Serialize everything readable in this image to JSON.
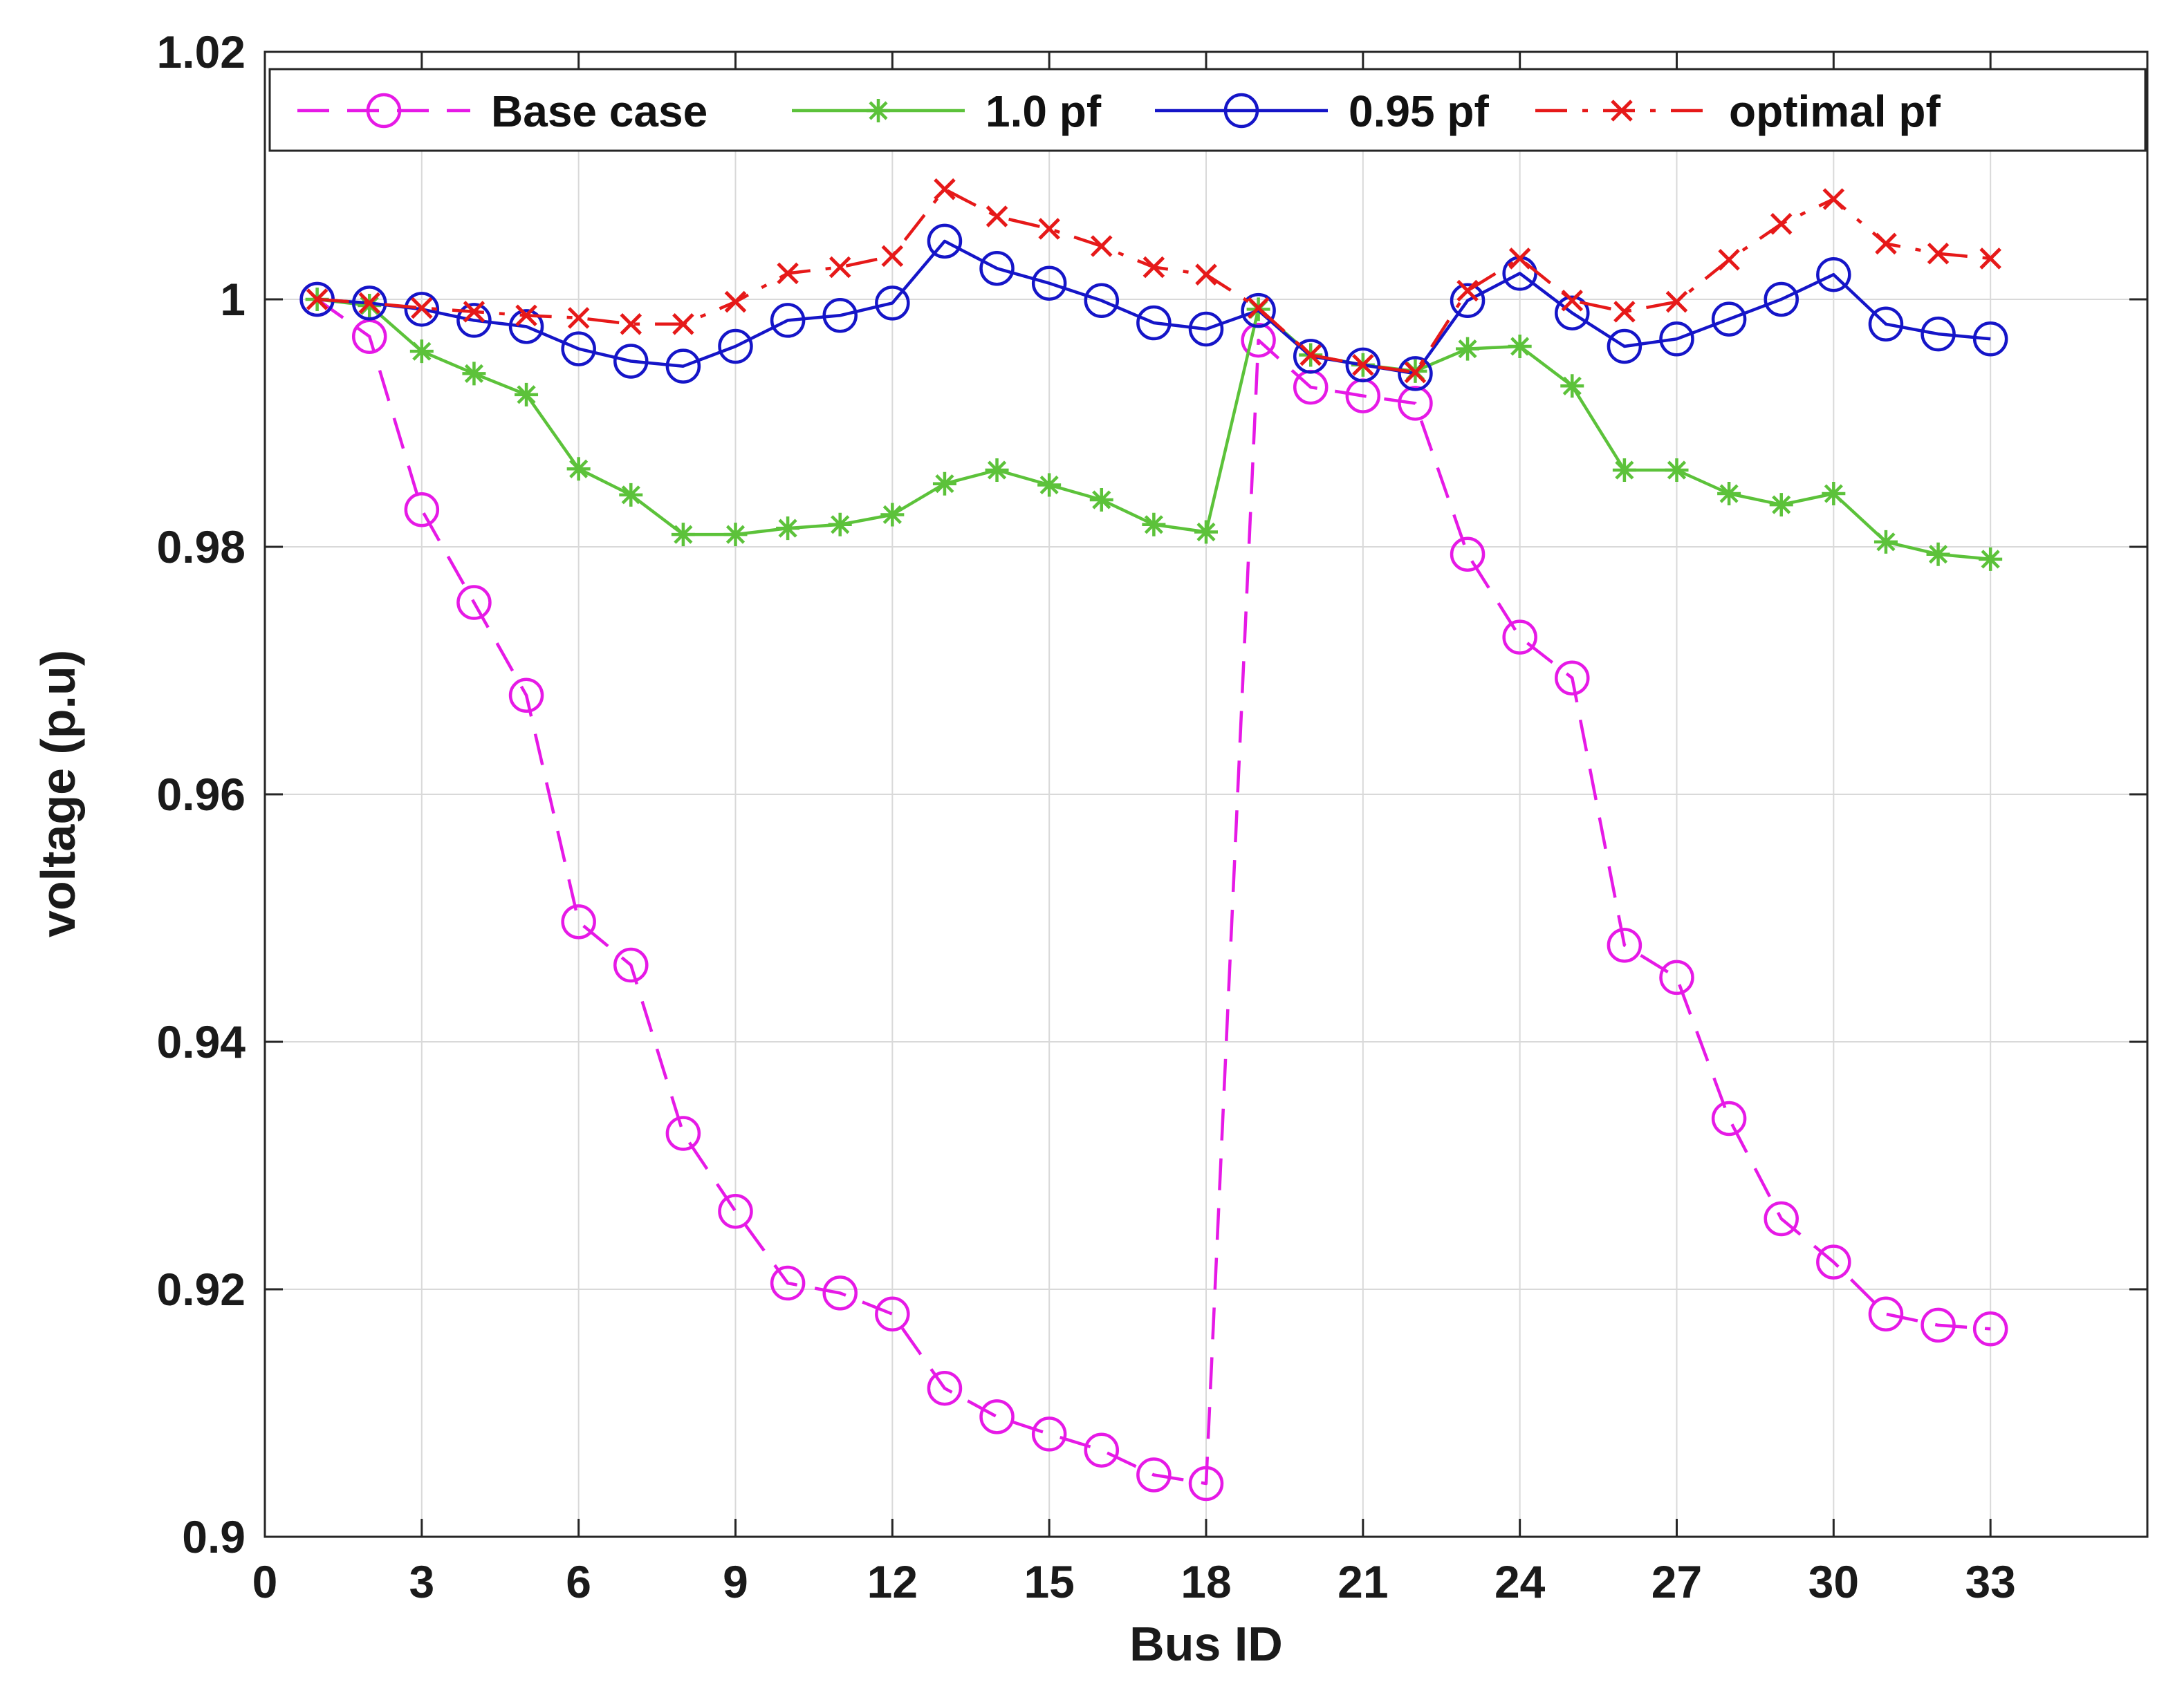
{
  "chart_data": {
    "type": "line",
    "title": "",
    "xlabel": "Bus ID",
    "ylabel": "voltage (p.u)",
    "xlim": [
      0,
      36
    ],
    "ylim": [
      0.9,
      1.02
    ],
    "xticks": [
      0,
      3,
      6,
      9,
      12,
      15,
      18,
      21,
      24,
      27,
      30,
      33
    ],
    "xtick_labels": [
      "0",
      "3",
      "6",
      "9",
      "12",
      "15",
      "18",
      "21",
      "24",
      "27",
      "30",
      "33"
    ],
    "yticks": [
      0.9,
      0.92,
      0.94,
      0.96,
      0.98,
      1.0,
      1.02
    ],
    "ytick_labels": [
      "0.9",
      "0.92",
      "0.94",
      "0.96",
      "0.98",
      "1",
      "1.02"
    ],
    "grid": true,
    "legend_position": "top",
    "x": [
      1,
      2,
      3,
      4,
      5,
      6,
      7,
      8,
      9,
      10,
      11,
      12,
      13,
      14,
      15,
      16,
      17,
      18,
      19,
      20,
      21,
      22,
      23,
      24,
      25,
      26,
      27,
      28,
      29,
      30,
      31,
      32,
      33
    ],
    "series": [
      {
        "name": "Base case",
        "color": "#e619e6",
        "line_style": "dashed",
        "marker": "circle",
        "values": [
          1.0,
          0.997,
          0.983,
          0.9755,
          0.968,
          0.9497,
          0.9462,
          0.9326,
          0.9263,
          0.9205,
          0.9197,
          0.918,
          0.912,
          0.9097,
          0.9083,
          0.907,
          0.905,
          0.9043,
          0.9967,
          0.9929,
          0.9922,
          0.9916,
          0.9794,
          0.9727,
          0.9694,
          0.9478,
          0.9452,
          0.9338,
          0.9257,
          0.9222,
          0.918,
          0.9171,
          0.9168
        ]
      },
      {
        "name": "1.0 pf",
        "color": "#5cc23a",
        "line_style": "solid",
        "marker": "asterisk",
        "values": [
          1.0,
          0.9995,
          0.9958,
          0.994,
          0.9923,
          0.9863,
          0.9842,
          0.981,
          0.981,
          0.9815,
          0.9818,
          0.9826,
          0.9851,
          0.9862,
          0.985,
          0.9838,
          0.9818,
          0.9812,
          0.9992,
          0.9955,
          0.9947,
          0.9942,
          0.996,
          0.9962,
          0.993,
          0.9862,
          0.9862,
          0.9843,
          0.9834,
          0.9843,
          0.9804,
          0.9794,
          0.979
        ]
      },
      {
        "name": "0.95 pf",
        "color": "#1515c8",
        "line_style": "solid",
        "marker": "circle",
        "values": [
          1.0,
          0.9997,
          0.9992,
          0.9983,
          0.9978,
          0.996,
          0.995,
          0.9946,
          0.9962,
          0.9983,
          0.9987,
          0.9997,
          1.0047,
          1.0025,
          1.0013,
          0.9999,
          0.9981,
          0.9976,
          0.9991,
          0.9954,
          0.9947,
          0.994,
          0.9999,
          1.0021,
          0.9989,
          0.9962,
          0.9968,
          0.9984,
          1.0,
          1.002,
          0.998,
          0.9972,
          0.9968
        ]
      },
      {
        "name": "optimal pf",
        "color": "#e61919",
        "line_style": "dashdot",
        "marker": "cross",
        "values": [
          1.0,
          0.9997,
          0.9993,
          0.999,
          0.9987,
          0.9985,
          0.998,
          0.998,
          0.9998,
          1.0021,
          1.0026,
          1.0035,
          1.0089,
          1.0067,
          1.0057,
          1.0043,
          1.0026,
          1.002,
          0.9993,
          0.9955,
          0.9947,
          0.9941,
          1.0007,
          1.0033,
          0.9999,
          0.999,
          0.9998,
          1.0032,
          1.0061,
          1.0081,
          1.0045,
          1.0037,
          1.0033
        ]
      }
    ]
  }
}
